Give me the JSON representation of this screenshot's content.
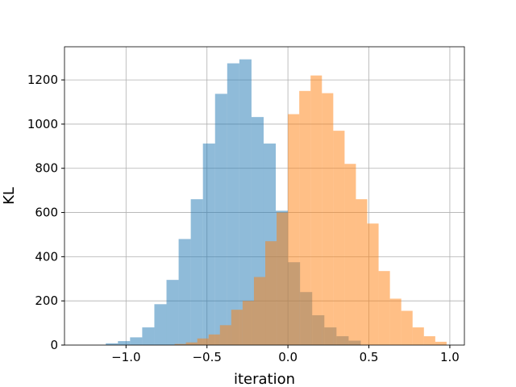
{
  "chart_data": {
    "type": "histogram",
    "xlabel": "iteration",
    "ylabel": "KL",
    "xlim": [
      -1.38,
      1.09
    ],
    "ylim": [
      0,
      1350
    ],
    "grid": true,
    "xticks": [
      {
        "value": -1.0,
        "label": "−1.0"
      },
      {
        "value": -0.5,
        "label": "−0.5"
      },
      {
        "value": 0.0,
        "label": "0.0"
      },
      {
        "value": 0.5,
        "label": "0.5"
      },
      {
        "value": 1.0,
        "label": "1.0"
      }
    ],
    "yticks": [
      {
        "value": 0,
        "label": "0"
      },
      {
        "value": 200,
        "label": "200"
      },
      {
        "value": 400,
        "label": "400"
      },
      {
        "value": 600,
        "label": "600"
      },
      {
        "value": 800,
        "label": "800"
      },
      {
        "value": 1000,
        "label": "1000"
      },
      {
        "value": 1200,
        "label": "1200"
      }
    ],
    "series": [
      {
        "color": "#1f77b4",
        "opacity": 0.5,
        "bins": [
          [
            -1.125,
            -1.05,
            8
          ],
          [
            -1.05,
            -0.975,
            18
          ],
          [
            -0.975,
            -0.9,
            35
          ],
          [
            -0.9,
            -0.825,
            80
          ],
          [
            -0.825,
            -0.75,
            185
          ],
          [
            -0.75,
            -0.675,
            295
          ],
          [
            -0.675,
            -0.6,
            480
          ],
          [
            -0.6,
            -0.525,
            660
          ],
          [
            -0.525,
            -0.45,
            912
          ],
          [
            -0.45,
            -0.375,
            1137
          ],
          [
            -0.375,
            -0.3,
            1275
          ],
          [
            -0.3,
            -0.225,
            1293
          ],
          [
            -0.225,
            -0.15,
            1032
          ],
          [
            -0.15,
            -0.075,
            912
          ],
          [
            -0.075,
            0.0,
            608
          ],
          [
            0.0,
            0.075,
            375
          ],
          [
            0.075,
            0.15,
            240
          ],
          [
            0.15,
            0.225,
            135
          ],
          [
            0.225,
            0.3,
            80
          ],
          [
            0.3,
            0.375,
            40
          ],
          [
            0.375,
            0.45,
            20
          ]
        ]
      },
      {
        "color": "#ff7f0e",
        "opacity": 0.5,
        "bins": [
          [
            -0.7,
            -0.63,
            5
          ],
          [
            -0.63,
            -0.56,
            12
          ],
          [
            -0.56,
            -0.49,
            30
          ],
          [
            -0.49,
            -0.42,
            48
          ],
          [
            -0.42,
            -0.35,
            90
          ],
          [
            -0.35,
            -0.28,
            160
          ],
          [
            -0.28,
            -0.21,
            200
          ],
          [
            -0.21,
            -0.14,
            308
          ],
          [
            -0.14,
            -0.07,
            470
          ],
          [
            -0.07,
            0.0,
            600
          ],
          [
            0.0,
            0.07,
            1045
          ],
          [
            0.07,
            0.14,
            1150
          ],
          [
            0.14,
            0.21,
            1220
          ],
          [
            0.21,
            0.28,
            1140
          ],
          [
            0.28,
            0.35,
            970
          ],
          [
            0.35,
            0.42,
            820
          ],
          [
            0.42,
            0.49,
            660
          ],
          [
            0.49,
            0.56,
            550
          ],
          [
            0.56,
            0.63,
            335
          ],
          [
            0.63,
            0.7,
            210
          ],
          [
            0.7,
            0.77,
            155
          ],
          [
            0.77,
            0.84,
            80
          ],
          [
            0.84,
            0.91,
            40
          ],
          [
            0.91,
            0.98,
            15
          ]
        ]
      }
    ]
  }
}
